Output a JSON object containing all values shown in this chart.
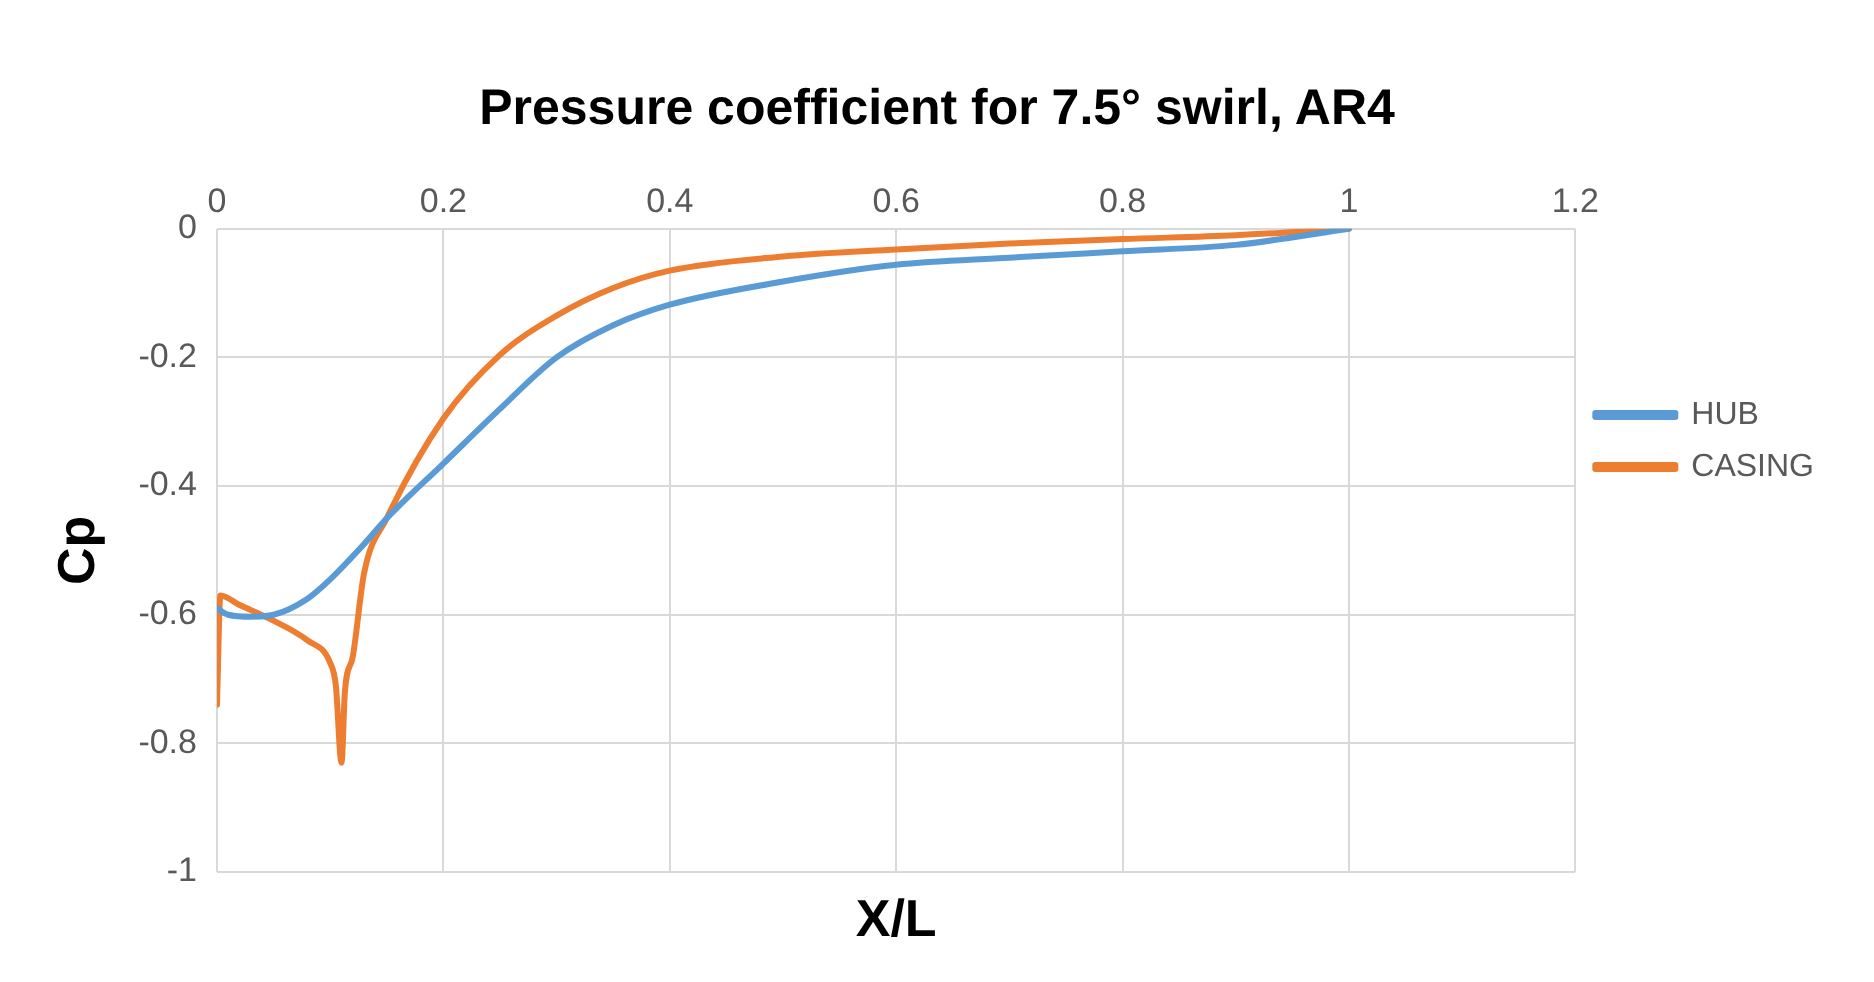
{
  "chart_data": {
    "type": "line",
    "title": "Pressure coefficient for 7.5° swirl, AR4",
    "xlabel": "X/L",
    "ylabel": "Cp",
    "xlim": [
      0,
      1.2
    ],
    "xticks": [
      0,
      0.2,
      0.4,
      0.6,
      0.8,
      1,
      1.2
    ],
    "ylim": [
      -1,
      0
    ],
    "yticks": [
      -1,
      -0.8,
      -0.6,
      -0.4,
      -0.2,
      0
    ],
    "grid": true,
    "legend": "right",
    "marker": "none",
    "line_style": "solid",
    "series": [
      {
        "name": "HUB",
        "color": "#5b9bd5",
        "x": [
          0,
          0.01,
          0.03,
          0.05,
          0.08,
          0.1,
          0.13,
          0.15,
          0.2,
          0.25,
          0.3,
          0.35,
          0.4,
          0.5,
          0.6,
          0.7,
          0.8,
          0.9,
          1
        ],
        "values": [
          -0.59,
          -0.6,
          -0.603,
          -0.6,
          -0.575,
          -0.545,
          -0.49,
          -0.45,
          -0.365,
          -0.28,
          -0.2,
          -0.15,
          -0.118,
          -0.082,
          -0.056,
          -0.045,
          -0.035,
          -0.025,
          0
        ]
      },
      {
        "name": "CASING",
        "color": "#ed7d31",
        "x": [
          0,
          0.003,
          0.02,
          0.045,
          0.08,
          0.1,
          0.105,
          0.11,
          0.113,
          0.12,
          0.13,
          0.15,
          0.2,
          0.25,
          0.3,
          0.35,
          0.4,
          0.5,
          0.6,
          0.7,
          0.8,
          0.9,
          1
        ],
        "values": [
          -0.74,
          -0.57,
          -0.585,
          -0.605,
          -0.64,
          -0.675,
          -0.71,
          -0.83,
          -0.72,
          -0.665,
          -0.535,
          -0.45,
          -0.295,
          -0.196,
          -0.135,
          -0.092,
          -0.065,
          -0.043,
          -0.032,
          -0.023,
          -0.016,
          -0.01,
          0
        ]
      }
    ]
  }
}
